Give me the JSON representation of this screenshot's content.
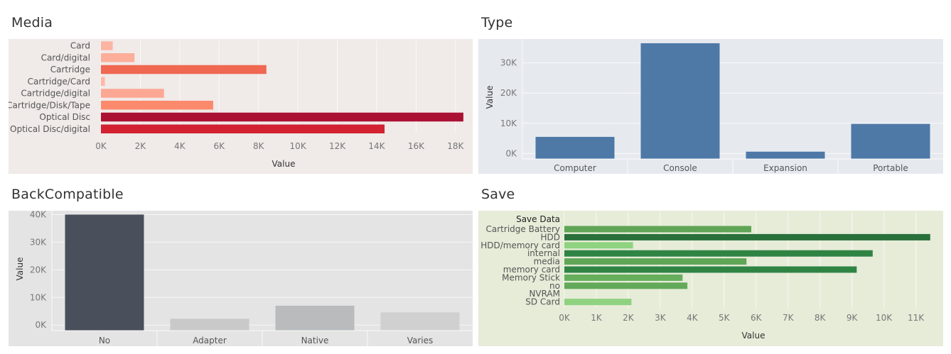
{
  "panels": {
    "media": {
      "title": "Media"
    },
    "type": {
      "title": "Type"
    },
    "back": {
      "title": "BackCompatible"
    },
    "save": {
      "title": "Save"
    }
  },
  "colors": {
    "media_bg": "#f0eae8",
    "type_bg": "#e6eaef",
    "back_bg": "#e4e4e4",
    "save_bg": "#e6ecd8",
    "type_bar": "#4e79a7"
  },
  "chart_data": [
    {
      "id": "media",
      "type": "bar",
      "orientation": "horizontal",
      "title": "Media",
      "xlabel": "Value",
      "ylabel": "",
      "categories": [
        "Card",
        "Card/digital",
        "Cartridge",
        "Cartridge/Card",
        "Cartridge/digital",
        "Cartridge/Disk/Tape",
        "Optical Disc",
        "Optical Disc/digital"
      ],
      "values": [
        600,
        1700,
        8400,
        200,
        3200,
        5700,
        18400,
        14400
      ],
      "colors": [
        "#fcb4a3",
        "#fcae9a",
        "#f06752",
        "#fdb8a8",
        "#fca794",
        "#fb8a6d",
        "#ab1133",
        "#d32132"
      ],
      "xlim": [
        0,
        18800
      ],
      "xticks": [
        0,
        2000,
        4000,
        6000,
        8000,
        10000,
        12000,
        14000,
        16000,
        18000
      ],
      "xtick_labels": [
        "0K",
        "2K",
        "4K",
        "6K",
        "8K",
        "10K",
        "12K",
        "14K",
        "16K",
        "18K"
      ]
    },
    {
      "id": "type",
      "type": "bar",
      "orientation": "vertical",
      "title": "Type",
      "xlabel": "",
      "ylabel": "Value",
      "categories": [
        "Computer",
        "Console",
        "Expansion",
        "Portable"
      ],
      "values": [
        5500,
        36500,
        600,
        9800
      ],
      "ylim": [
        -1800,
        37900
      ],
      "yticks": [
        0,
        10000,
        20000,
        30000
      ],
      "ytick_labels": [
        "0K",
        "10K",
        "20K",
        "30K"
      ]
    },
    {
      "id": "back",
      "type": "bar",
      "orientation": "vertical",
      "title": "BackCompatible",
      "xlabel": "",
      "ylabel": "Value",
      "categories": [
        "No",
        "Adapter",
        "Native",
        "Varies"
      ],
      "values": [
        40000,
        2300,
        7000,
        4600
      ],
      "colors": [
        "#4a4f5c",
        "#c9c9c9",
        "#b9bbbd",
        "#d0d0d0"
      ],
      "ylim": [
        -2000,
        41400
      ],
      "yticks": [
        0,
        10000,
        20000,
        30000,
        40000
      ],
      "ytick_labels": [
        "0K",
        "10K",
        "20K",
        "30K",
        "40K"
      ]
    },
    {
      "id": "save",
      "type": "bar",
      "orientation": "horizontal",
      "title": "Save",
      "xlabel": "Value",
      "ylabel": "",
      "category_header": "Save Data",
      "categories": [
        "Cartridge Battery",
        "HDD",
        "HDD/memory card",
        "internal",
        "media",
        "memory card",
        "Memory Stick",
        "no",
        "NVRAM",
        "SD Card"
      ],
      "values": [
        5850,
        11450,
        2150,
        9650,
        5700,
        9150,
        3700,
        3850,
        0,
        2100
      ],
      "colors": [
        "#5fa556",
        "#29703b",
        "#8fd280",
        "#2f8444",
        "#60a657",
        "#2f8444",
        "#66ae5b",
        "#62a959",
        "#8fd280",
        "#8fd280"
      ],
      "xlim": [
        0,
        11500
      ],
      "xticks": [
        0,
        1000,
        2000,
        3000,
        4000,
        5000,
        6000,
        7000,
        8000,
        9000,
        10000,
        11000
      ],
      "xtick_labels": [
        "0K",
        "1K",
        "2K",
        "3K",
        "4K",
        "5K",
        "6K",
        "7K",
        "8K",
        "9K",
        "10K",
        "11K"
      ]
    }
  ]
}
